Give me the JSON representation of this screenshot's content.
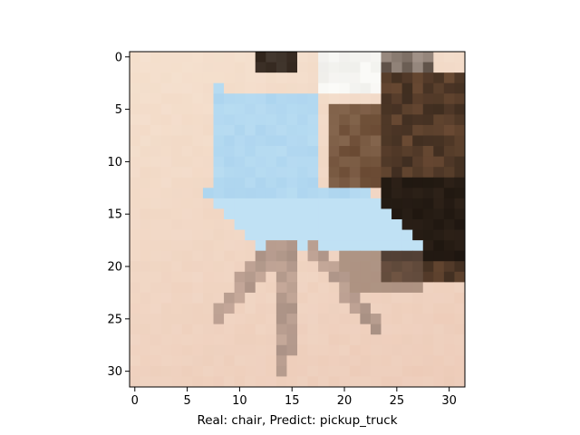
{
  "figure": {
    "xlabel": "Real: chair, Predict: pickup_truck"
  },
  "image": {
    "description_icon": "pixelated-chair-image",
    "grid_size": [
      32,
      32
    ],
    "palette": {
      "background_cream": "#f4dfcc",
      "floor_pink": "#ecc9b6",
      "chair_blue": "#a9d2ee",
      "chair_highlight": "#d3eef8",
      "chair_legs": "#c6a99a",
      "shadow_dark": "#2d2118",
      "wood_brown": "#6a4a33",
      "white_patch": "#fbfbf8"
    }
  },
  "axes": {
    "xticks": [
      "0",
      "5",
      "10",
      "15",
      "20",
      "25",
      "30"
    ],
    "yticks": [
      "0",
      "5",
      "10",
      "15",
      "20",
      "25",
      "30"
    ],
    "xlim": [
      -0.5,
      31.5
    ],
    "ylim": [
      31.5,
      -0.5
    ]
  }
}
